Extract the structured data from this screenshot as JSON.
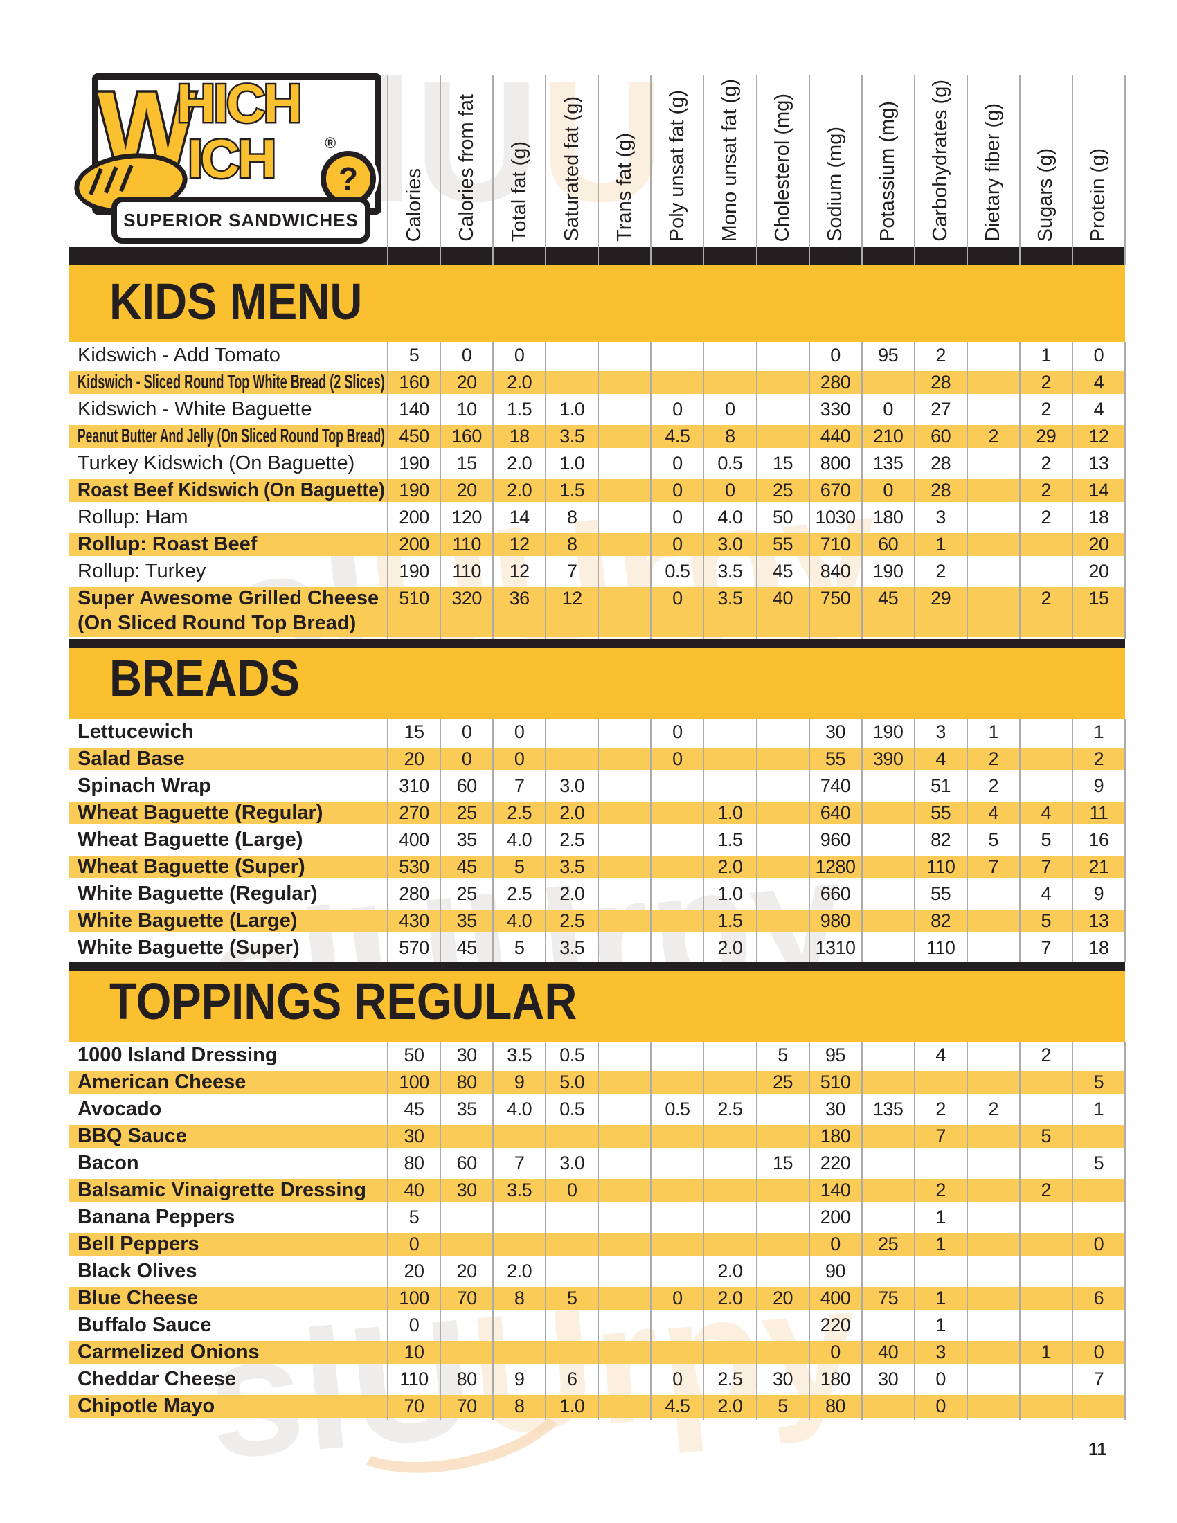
{
  "logo": {
    "word_big_w": "W",
    "word_top": "HICH",
    "word_bottom": "ICH",
    "registered": "®",
    "question_mark": "?",
    "tagline": "SUPERIOR SANDWICHES"
  },
  "page_number": "11",
  "watermark": {
    "text_gray": "slU",
    "text_orange": "Urpy",
    "text_full": "slUUrpy"
  },
  "colors": {
    "banner_yellow": "#FBC02F",
    "row_yellow": "#FBCB58",
    "ink": "#231F20",
    "grid_line": "#ABABAB",
    "watermark_gray": "#DDD9D4",
    "watermark_orange": "#F8DCBA"
  },
  "columns": [
    "Calories",
    "Calories from fat",
    "Total fat (g)",
    "Saturated fat (g)",
    "Trans fat (g)",
    "Poly unsat fat (g)",
    "Mono unsat fat (g)",
    "Cholesterol (mg)",
    "Sodium (mg)",
    "Potassium (mg)",
    "Carbohydrates (g)",
    "Dietary fiber (g)",
    "Sugars (g)",
    "Protein (g)"
  ],
  "sections": [
    {
      "title": "KIDS MENU",
      "rows": [
        {
          "name": "Kidswich - Add Tomato",
          "bold": false,
          "values": [
            "5",
            "0",
            "0",
            "",
            "",
            "",
            "",
            "",
            "0",
            "95",
            "2",
            "",
            "1",
            "0"
          ]
        },
        {
          "name": "Kidswich - Sliced Round Top White Bread (2 Slices)",
          "bold": true,
          "values": [
            "160",
            "20",
            "2.0",
            "",
            "",
            "",
            "",
            "",
            "280",
            "",
            "28",
            "",
            "2",
            "4"
          ]
        },
        {
          "name": "Kidswich - White Baguette",
          "bold": false,
          "values": [
            "140",
            "10",
            "1.5",
            "1.0",
            "",
            "0",
            "0",
            "",
            "330",
            "0",
            "27",
            "",
            "2",
            "4"
          ]
        },
        {
          "name": "Peanut Butter And Jelly (On Sliced Round Top Bread)",
          "bold": true,
          "values": [
            "450",
            "160",
            "18",
            "3.5",
            "",
            "4.5",
            "8",
            "",
            "440",
            "210",
            "60",
            "2",
            "29",
            "12"
          ]
        },
        {
          "name": "Turkey Kidswich (On Baguette)",
          "bold": false,
          "values": [
            "190",
            "15",
            "2.0",
            "1.0",
            "",
            "0",
            "0.5",
            "15",
            "800",
            "135",
            "28",
            "",
            "2",
            "13"
          ]
        },
        {
          "name": "Roast Beef Kidswich (On Baguette)",
          "bold": true,
          "values": [
            "190",
            "20",
            "2.0",
            "1.5",
            "",
            "0",
            "0",
            "25",
            "670",
            "0",
            "28",
            "",
            "2",
            "14"
          ]
        },
        {
          "name": "Rollup: Ham",
          "bold": false,
          "values": [
            "200",
            "120",
            "14",
            "8",
            "",
            "0",
            "4.0",
            "50",
            "1030",
            "180",
            "3",
            "",
            "2",
            "18"
          ]
        },
        {
          "name": "Rollup: Roast Beef",
          "bold": true,
          "values": [
            "200",
            "110",
            "12",
            "8",
            "",
            "0",
            "3.0",
            "55",
            "710",
            "60",
            "1",
            "",
            "",
            "20"
          ]
        },
        {
          "name": "Rollup: Turkey",
          "bold": false,
          "values": [
            "190",
            "110",
            "12",
            "7",
            "",
            "0.5",
            "3.5",
            "45",
            "840",
            "190",
            "2",
            "",
            "",
            "20"
          ]
        },
        {
          "name": "Super Awesome Grilled Cheese",
          "name2": "(On Sliced Round Top Bread)",
          "bold": true,
          "double": true,
          "values": [
            "510",
            "320",
            "36",
            "12",
            "",
            "0",
            "3.5",
            "40",
            "750",
            "45",
            "29",
            "",
            "2",
            "15"
          ]
        }
      ]
    },
    {
      "title": "BREADS",
      "rows": [
        {
          "name": "Lettucewich",
          "bold": true,
          "values": [
            "15",
            "0",
            "0",
            "",
            "",
            "0",
            "",
            "",
            "30",
            "190",
            "3",
            "1",
            "",
            "1"
          ]
        },
        {
          "name": "Salad Base",
          "bold": true,
          "values": [
            "20",
            "0",
            "0",
            "",
            "",
            "0",
            "",
            "",
            "55",
            "390",
            "4",
            "2",
            "",
            "2"
          ]
        },
        {
          "name": "Spinach Wrap",
          "bold": true,
          "values": [
            "310",
            "60",
            "7",
            "3.0",
            "",
            "",
            "",
            "",
            "740",
            "",
            "51",
            "2",
            "",
            "9"
          ]
        },
        {
          "name": "Wheat Baguette (Regular)",
          "bold": true,
          "values": [
            "270",
            "25",
            "2.5",
            "2.0",
            "",
            "",
            "1.0",
            "",
            "640",
            "",
            "55",
            "4",
            "4",
            "11"
          ]
        },
        {
          "name": "Wheat Baguette (Large)",
          "bold": true,
          "values": [
            "400",
            "35",
            "4.0",
            "2.5",
            "",
            "",
            "1.5",
            "",
            "960",
            "",
            "82",
            "5",
            "5",
            "16"
          ]
        },
        {
          "name": "Wheat Baguette (Super)",
          "bold": true,
          "values": [
            "530",
            "45",
            "5",
            "3.5",
            "",
            "",
            "2.0",
            "",
            "1280",
            "",
            "110",
            "7",
            "7",
            "21"
          ]
        },
        {
          "name": "White Baguette (Regular)",
          "bold": true,
          "values": [
            "280",
            "25",
            "2.5",
            "2.0",
            "",
            "",
            "1.0",
            "",
            "660",
            "",
            "55",
            "",
            "4",
            "9"
          ]
        },
        {
          "name": "White Baguette (Large)",
          "bold": true,
          "values": [
            "430",
            "35",
            "4.0",
            "2.5",
            "",
            "",
            "1.5",
            "",
            "980",
            "",
            "82",
            "",
            "5",
            "13"
          ]
        },
        {
          "name": "White Baguette (Super)",
          "bold": true,
          "values": [
            "570",
            "45",
            "5",
            "3.5",
            "",
            "",
            "2.0",
            "",
            "1310",
            "",
            "110",
            "",
            "7",
            "18"
          ]
        }
      ]
    },
    {
      "title": "TOPPINGS REGULAR",
      "rows": [
        {
          "name": "1000 Island Dressing",
          "bold": true,
          "values": [
            "50",
            "30",
            "3.5",
            "0.5",
            "",
            "",
            "",
            "5",
            "95",
            "",
            "4",
            "",
            "2",
            ""
          ]
        },
        {
          "name": "American Cheese",
          "bold": true,
          "values": [
            "100",
            "80",
            "9",
            "5.0",
            "",
            "",
            "",
            "25",
            "510",
            "",
            "",
            "",
            "",
            "5"
          ]
        },
        {
          "name": "Avocado",
          "bold": true,
          "values": [
            "45",
            "35",
            "4.0",
            "0.5",
            "",
            "0.5",
            "2.5",
            "",
            "30",
            "135",
            "2",
            "2",
            "",
            "1"
          ]
        },
        {
          "name": "BBQ Sauce",
          "bold": true,
          "values": [
            "30",
            "",
            "",
            "",
            "",
            "",
            "",
            "",
            "180",
            "",
            "7",
            "",
            "5",
            ""
          ]
        },
        {
          "name": "Bacon",
          "bold": true,
          "values": [
            "80",
            "60",
            "7",
            "3.0",
            "",
            "",
            "",
            "15",
            "220",
            "",
            "",
            "",
            "",
            "5"
          ]
        },
        {
          "name": "Balsamic Vinaigrette Dressing",
          "bold": true,
          "values": [
            "40",
            "30",
            "3.5",
            "0",
            "",
            "",
            "",
            "",
            "140",
            "",
            "2",
            "",
            "2",
            ""
          ]
        },
        {
          "name": "Banana Peppers",
          "bold": true,
          "values": [
            "5",
            "",
            "",
            "",
            "",
            "",
            "",
            "",
            "200",
            "",
            "1",
            "",
            "",
            ""
          ]
        },
        {
          "name": "Bell Peppers",
          "bold": true,
          "values": [
            "0",
            "",
            "",
            "",
            "",
            "",
            "",
            "",
            "0",
            "25",
            "1",
            "",
            "",
            "0"
          ]
        },
        {
          "name": "Black Olives",
          "bold": true,
          "values": [
            "20",
            "20",
            "2.0",
            "",
            "",
            "",
            "2.0",
            "",
            "90",
            "",
            "",
            "",
            "",
            ""
          ]
        },
        {
          "name": "Blue Cheese",
          "bold": true,
          "values": [
            "100",
            "70",
            "8",
            "5",
            "",
            "0",
            "2.0",
            "20",
            "400",
            "75",
            "1",
            "",
            "",
            "6"
          ]
        },
        {
          "name": "Buffalo Sauce",
          "bold": true,
          "values": [
            "0",
            "",
            "",
            "",
            "",
            "",
            "",
            "",
            "220",
            "",
            "1",
            "",
            "",
            ""
          ]
        },
        {
          "name": "Carmelized Onions",
          "bold": true,
          "values": [
            "10",
            "",
            "",
            "",
            "",
            "",
            "",
            "",
            "0",
            "40",
            "3",
            "",
            "1",
            "0"
          ]
        },
        {
          "name": "Cheddar Cheese",
          "bold": true,
          "values": [
            "110",
            "80",
            "9",
            "6",
            "",
            "0",
            "2.5",
            "30",
            "180",
            "30",
            "0",
            "",
            "",
            "7"
          ]
        },
        {
          "name": "Chipotle Mayo",
          "bold": true,
          "values": [
            "70",
            "70",
            "8",
            "1.0",
            "",
            "4.5",
            "2.0",
            "5",
            "80",
            "",
            "0",
            "",
            "",
            ""
          ]
        }
      ]
    }
  ]
}
